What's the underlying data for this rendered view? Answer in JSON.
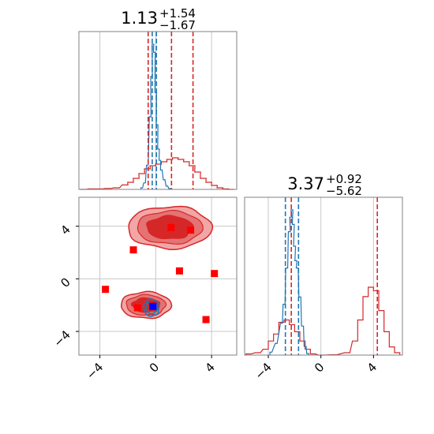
{
  "chart_data": {
    "type": "corner",
    "parameters": [
      {
        "title_value": "1.13",
        "title_plus": "+1.54",
        "title_minus": "−1.67",
        "range": [
          -5.5,
          5.8
        ]
      },
      {
        "title_value": "3.37",
        "title_plus": "+0.92",
        "title_minus": "−5.62",
        "range": [
          -5.8,
          6.2
        ]
      }
    ],
    "ticks": [
      -4,
      0,
      4
    ],
    "tick_labels": [
      "−4",
      "0",
      "4"
    ],
    "colors": {
      "red": "#d62728",
      "blue": "#1f77b4",
      "marker_red": "#ff0000",
      "marker_blue": "#0000ff",
      "grid": "#c8c8c8"
    },
    "marginal_1": {
      "red_hist": {
        "x": [
          -5.2,
          -4.6,
          -4.0,
          -3.4,
          -2.8,
          -2.2,
          -1.8,
          -1.4,
          -1.0,
          -0.6,
          -0.2,
          0.2,
          0.6,
          1.0,
          1.4,
          1.8,
          2.2,
          2.6,
          3.0,
          3.4,
          3.8,
          4.2,
          4.6,
          5.0,
          5.4
        ],
        "values": [
          0.0,
          0.003,
          0.003,
          0.006,
          0.01,
          0.028,
          0.045,
          0.07,
          0.1,
          0.13,
          0.15,
          0.16,
          0.175,
          0.19,
          0.2,
          0.19,
          0.175,
          0.15,
          0.11,
          0.07,
          0.045,
          0.025,
          0.01,
          0.003,
          0.0
        ]
      },
      "blue_hist": {
        "x": [
          -1.0,
          -0.8,
          -0.6,
          -0.4,
          -0.3,
          -0.2,
          -0.1,
          0.0,
          0.1,
          0.2,
          0.3,
          0.4,
          0.6,
          0.8,
          1.0
        ],
        "values": [
          0.01,
          0.04,
          0.15,
          0.45,
          0.7,
          0.9,
          0.85,
          0.6,
          0.4,
          0.25,
          0.18,
          0.12,
          0.06,
          0.02,
          0.005
        ]
      },
      "red_quantiles": [
        -0.54,
        1.13,
        2.67
      ],
      "blue_quantiles": [
        -0.25,
        0.05
      ]
    },
    "marginal_2": {
      "red_hist": {
        "x": [
          -5.5,
          -4.8,
          -4.2,
          -3.8,
          -3.4,
          -3.0,
          -2.6,
          -2.2,
          -1.8,
          -1.4,
          -1.0,
          -0.6,
          0.0,
          1.0,
          2.0,
          2.6,
          3.0,
          3.4,
          3.8,
          4.2,
          4.6,
          5.0,
          5.4,
          5.8
        ],
        "values": [
          0.01,
          0.02,
          0.05,
          0.12,
          0.18,
          0.28,
          0.3,
          0.26,
          0.2,
          0.12,
          0.05,
          0.01,
          0.0,
          0.003,
          0.02,
          0.12,
          0.3,
          0.5,
          0.58,
          0.55,
          0.38,
          0.2,
          0.07,
          0.02
        ]
      },
      "blue_hist": {
        "x": [
          -3.8,
          -3.4,
          -3.0,
          -2.8,
          -2.6,
          -2.4,
          -2.3,
          -2.2,
          -2.1,
          -2.0,
          -1.9,
          -1.8,
          -1.6,
          -1.4,
          -1.2,
          -1.0
        ],
        "values": [
          0.02,
          0.08,
          0.22,
          0.35,
          0.6,
          0.85,
          0.95,
          1.0,
          0.9,
          0.75,
          0.65,
          0.6,
          0.4,
          0.2,
          0.06,
          0.01
        ]
      },
      "red_quantiles": [
        -2.25,
        4.29
      ],
      "blue_quantiles": [
        -2.7,
        -1.7
      ]
    },
    "joint": {
      "red_modes": [
        {
          "cx": 1.0,
          "cy": 3.9,
          "rx": 3.0,
          "ry": 1.6
        },
        {
          "cx": -0.7,
          "cy": -2.0,
          "rx": 1.8,
          "ry": 1.0
        }
      ],
      "blue_mode": {
        "cx": -0.3,
        "cy": -2.2,
        "rx": 0.55,
        "ry": 0.65
      },
      "red_markers": [
        {
          "x": 1.1,
          "y": 3.9
        },
        {
          "x": 2.5,
          "y": 3.7
        },
        {
          "x": -1.6,
          "y": 2.2
        },
        {
          "x": 1.7,
          "y": 0.6
        },
        {
          "x": 4.2,
          "y": 0.4
        },
        {
          "x": -3.6,
          "y": -0.8
        },
        {
          "x": 3.6,
          "y": -3.1
        },
        {
          "x": -1.3,
          "y": -2.2
        },
        {
          "x": -0.2,
          "y": -2.0
        }
      ],
      "blue_markers": [
        {
          "x": -0.2,
          "y": -2.1
        }
      ]
    }
  }
}
